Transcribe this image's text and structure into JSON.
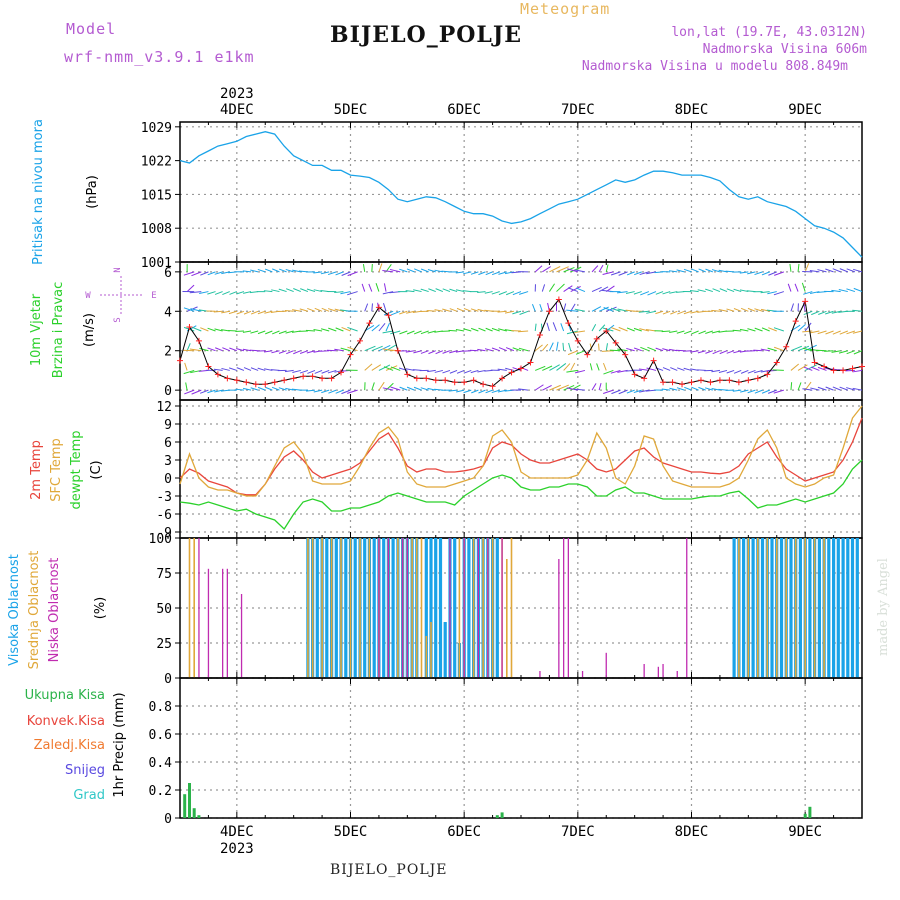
{
  "header": {
    "model_label": "Model",
    "model_name": "wrf-nmm_v3.9.1 e1km",
    "station": "BIJELO_POLJE",
    "meteogram": "Meteogram",
    "lonlat": "lon,lat (19.7E, 43.0312N)",
    "altitude": "Nadmorska Visina 606m",
    "model_altitude": "Nadmorska Visina u modelu 808.849m"
  },
  "footer": {
    "station": "BIJELO_POLJE"
  },
  "watermark": "made by Angel",
  "time_axis": {
    "year": "2023",
    "days": [
      "4DEC",
      "5DEC",
      "6DEC",
      "7DEC",
      "8DEC",
      "9DEC"
    ],
    "range_hours": [
      -12,
      132
    ]
  },
  "colors": {
    "pressure": "#1aa3e8",
    "wind_label": "#2bd12b",
    "temp2m": "#e8453c",
    "sfc_temp": "#e0a83a",
    "dewpt": "#2bd12b",
    "high_cloud": "#1aa3e8",
    "mid_cloud": "#e0a83a",
    "low_cloud": "#c02cb0",
    "total_precip": "#2bb34a",
    "conv_precip": "#e8453c",
    "frozen_precip": "#f07a30",
    "snow": "#5a4ae0",
    "hail": "#30c8c8"
  },
  "chart_data": [
    {
      "type": "line",
      "panel": "pressure",
      "ylabel": "Pritisak na nivou mora",
      "unit": "(hPa)",
      "ylim": [
        1001,
        1030
      ],
      "yticks": [
        1001,
        1008,
        1015,
        1022,
        1029
      ],
      "series": [
        {
          "x": [
            -12,
            -10,
            -8,
            -6,
            -4,
            -2,
            0,
            2,
            4,
            6,
            8,
            10,
            12,
            14,
            16,
            18,
            20,
            22,
            24,
            26,
            28,
            30,
            32,
            34,
            36,
            38,
            40,
            42,
            44,
            46,
            48,
            50,
            52,
            54,
            56,
            58,
            60,
            62,
            64,
            66,
            68,
            70,
            72,
            74,
            76,
            78,
            80,
            82,
            84,
            86,
            88,
            90,
            92,
            94,
            96,
            98,
            100,
            102,
            104,
            106,
            108,
            110,
            112,
            114,
            116,
            118,
            120,
            122,
            124,
            126,
            128,
            130,
            132
          ],
          "values": [
            1022,
            1021.5,
            1023,
            1024,
            1025,
            1025.5,
            1026,
            1027,
            1027.5,
            1028,
            1027.5,
            1025,
            1023,
            1022,
            1021,
            1021,
            1020,
            1020,
            1019,
            1018.8,
            1018.5,
            1017.5,
            1016,
            1014,
            1013.5,
            1014,
            1014.5,
            1014.3,
            1013.5,
            1012.5,
            1011.5,
            1011,
            1011,
            1010.5,
            1009.5,
            1009,
            1009.3,
            1010,
            1011,
            1012,
            1013,
            1013.5,
            1014,
            1015,
            1016,
            1017,
            1018,
            1017.5,
            1018,
            1019,
            1019.8,
            1019.8,
            1019.5,
            1019,
            1019,
            1019,
            1018.5,
            1017.8,
            1016,
            1014.5,
            1014,
            1014.5,
            1013.5,
            1013,
            1012.5,
            1011.5,
            1010,
            1008.5,
            1008,
            1007.2,
            1006,
            1004,
            1002
          ]
        }
      ]
    },
    {
      "type": "line",
      "panel": "wind",
      "ylabel": [
        "10m Vjetar",
        "Brzina i Pravac"
      ],
      "unit": "(m/s)",
      "compass": {
        "n": "N",
        "s": "S",
        "w": "W",
        "e": "E"
      },
      "ylim": [
        -0.5,
        6.5
      ],
      "yticks": [
        0,
        2,
        4,
        6
      ],
      "series": [
        {
          "name": "speed",
          "x": [
            -12,
            -10,
            -8,
            -6,
            -4,
            -2,
            0,
            2,
            4,
            6,
            8,
            10,
            12,
            14,
            16,
            18,
            20,
            22,
            24,
            26,
            28,
            30,
            32,
            34,
            36,
            38,
            40,
            42,
            44,
            46,
            48,
            50,
            52,
            54,
            56,
            58,
            60,
            62,
            64,
            66,
            68,
            70,
            72,
            74,
            76,
            78,
            80,
            82,
            84,
            86,
            88,
            90,
            92,
            94,
            96,
            98,
            100,
            102,
            104,
            106,
            108,
            110,
            112,
            114,
            116,
            118,
            120,
            122,
            124,
            126,
            128,
            130,
            132
          ],
          "values": [
            1.5,
            3.2,
            2.5,
            1.2,
            0.8,
            0.6,
            0.5,
            0.4,
            0.3,
            0.3,
            0.4,
            0.5,
            0.6,
            0.7,
            0.7,
            0.6,
            0.6,
            0.9,
            1.8,
            2.5,
            3.4,
            4.2,
            3.8,
            2.0,
            0.8,
            0.6,
            0.6,
            0.5,
            0.5,
            0.4,
            0.4,
            0.5,
            0.3,
            0.2,
            0.6,
            0.9,
            1.1,
            1.4,
            2.8,
            4.0,
            4.6,
            3.4,
            2.5,
            1.8,
            2.6,
            3.0,
            2.4,
            1.8,
            0.8,
            0.6,
            1.5,
            0.4,
            0.4,
            0.3,
            0.4,
            0.5,
            0.4,
            0.5,
            0.5,
            0.4,
            0.5,
            0.6,
            0.8,
            1.4,
            2.2,
            3.5,
            4.5,
            1.4,
            1.2,
            1.0,
            1.0,
            1.1,
            1.2
          ]
        }
      ]
    },
    {
      "type": "line",
      "panel": "temperature",
      "ylabels": [
        "2m Temp",
        "SFC Temp",
        "dewpt Temp"
      ],
      "unit": "(C)",
      "ylim": [
        -10,
        13
      ],
      "yticks": [
        -9,
        -6,
        -3,
        0,
        3,
        6,
        9,
        12
      ],
      "x": [
        -12,
        -10,
        -8,
        -6,
        -4,
        -2,
        0,
        2,
        4,
        6,
        8,
        10,
        12,
        14,
        16,
        18,
        20,
        22,
        24,
        26,
        28,
        30,
        32,
        34,
        36,
        38,
        40,
        42,
        44,
        46,
        48,
        50,
        52,
        54,
        56,
        58,
        60,
        62,
        64,
        66,
        68,
        70,
        72,
        74,
        76,
        78,
        80,
        82,
        84,
        86,
        88,
        90,
        92,
        94,
        96,
        98,
        100,
        102,
        104,
        106,
        108,
        110,
        112,
        114,
        116,
        118,
        120,
        122,
        124,
        126,
        128,
        130,
        132
      ],
      "series": [
        {
          "name": "2m Temp",
          "values": [
            0,
            1.5,
            0.8,
            -0.5,
            -1.0,
            -1.5,
            -2.5,
            -2.8,
            -2.8,
            -1,
            1.5,
            3.5,
            4.5,
            3,
            1,
            0,
            0.5,
            1,
            1.5,
            2.5,
            4.5,
            6.5,
            7.5,
            5,
            2,
            1,
            1.5,
            1.5,
            1,
            1,
            1.2,
            1.5,
            2,
            5,
            6,
            5.5,
            4,
            3,
            2.5,
            2.5,
            3,
            3.5,
            4,
            3,
            1.5,
            1,
            1.5,
            3,
            4.5,
            5,
            3.5,
            2.5,
            2,
            1.5,
            1,
            1,
            0.8,
            0.7,
            1,
            2,
            4,
            5,
            6,
            3.5,
            1.5,
            0.5,
            -0.5,
            0,
            0.5,
            1,
            3,
            6,
            10
          ]
        },
        {
          "name": "SFC Temp",
          "values": [
            -1,
            4,
            0,
            -1.5,
            -2,
            -2,
            -2.5,
            -3,
            -3,
            -1,
            2,
            5,
            6,
            4,
            -0.5,
            -1,
            -1,
            -1,
            -0.5,
            2,
            5,
            7.5,
            8.5,
            6.5,
            1,
            -1,
            -1.5,
            -1.5,
            -1.5,
            -1,
            -0.5,
            0,
            2,
            7,
            8,
            6,
            1,
            0,
            0,
            0,
            0,
            0,
            0.5,
            3,
            7.5,
            5,
            0,
            -1,
            2,
            7,
            6.5,
            2,
            -0.5,
            -1,
            -1.5,
            -1.5,
            -1.5,
            -1.5,
            -1,
            0,
            3,
            6.5,
            8,
            5,
            0,
            -1,
            -1.5,
            -1,
            0,
            0.5,
            5,
            10,
            12
          ]
        },
        {
          "name": "dewpt Temp",
          "values": [
            -4,
            -4.2,
            -4.5,
            -4,
            -4.5,
            -5,
            -5.5,
            -5.2,
            -6,
            -6.5,
            -7,
            -8.5,
            -6,
            -4,
            -3.5,
            -4,
            -5.5,
            -5.5,
            -5,
            -5,
            -4.5,
            -4,
            -3,
            -2.5,
            -3,
            -3.5,
            -4,
            -4,
            -4,
            -4.5,
            -3,
            -2,
            -1,
            0,
            0.5,
            0,
            -1.5,
            -2,
            -2,
            -1.5,
            -1.5,
            -1,
            -1,
            -1.5,
            -3,
            -3,
            -2,
            -1.5,
            -2.5,
            -2.5,
            -3,
            -3.5,
            -3.5,
            -3.5,
            -3.5,
            -3.2,
            -3,
            -3,
            -2.5,
            -2.2,
            -3.5,
            -5,
            -4.5,
            -4.5,
            -4,
            -3.5,
            -4,
            -3.5,
            -3,
            -2.5,
            -1,
            1.5,
            3
          ]
        }
      ]
    },
    {
      "type": "bar",
      "panel": "cloud",
      "ylabels": [
        "Visoka Oblacnost",
        "Srednja Oblacnost",
        "Niska Oblacnost"
      ],
      "unit": "(%)",
      "ylim": [
        0,
        100
      ],
      "yticks": [
        0,
        25,
        50,
        75,
        100
      ],
      "series": [
        {
          "name": "Visoka Oblacnost",
          "x": [
            15,
            16,
            17,
            18,
            19,
            20,
            21,
            22,
            23,
            24,
            25,
            26,
            27,
            28,
            29,
            30,
            31,
            32,
            33,
            34,
            35,
            36,
            37,
            38,
            40,
            41,
            42,
            43,
            44,
            45,
            46,
            47,
            48,
            49,
            50,
            51,
            52,
            53,
            54,
            55,
            105,
            106,
            107,
            108,
            109,
            110,
            111,
            112,
            113,
            114,
            115,
            116,
            117,
            118,
            119,
            120,
            121,
            122,
            123,
            124,
            125,
            126,
            127,
            128,
            129,
            130,
            131
          ],
          "values": [
            100,
            100,
            100,
            100,
            100,
            100,
            100,
            100,
            100,
            100,
            100,
            100,
            100,
            100,
            100,
            100,
            100,
            100,
            100,
            100,
            100,
            100,
            100,
            100,
            100,
            100,
            100,
            100,
            40,
            100,
            100,
            25,
            100,
            100,
            100,
            100,
            100,
            100,
            100,
            100,
            100,
            100,
            100,
            100,
            100,
            100,
            100,
            100,
            100,
            100,
            100,
            100,
            100,
            100,
            100,
            100,
            100,
            100,
            100,
            100,
            100,
            100,
            100,
            100,
            100,
            100,
            100
          ]
        },
        {
          "name": "Srednja Oblacnost",
          "x": [
            -10,
            -9,
            15,
            16,
            18,
            20,
            22,
            24,
            26,
            28,
            30,
            32,
            34,
            35,
            36,
            37,
            38,
            39,
            40,
            41,
            47,
            48,
            50,
            52,
            53,
            54,
            56,
            57,
            58,
            106,
            108,
            110,
            112,
            114,
            116,
            118,
            120,
            122,
            124
          ],
          "values": [
            100,
            100,
            100,
            100,
            100,
            100,
            100,
            100,
            100,
            100,
            100,
            100,
            100,
            100,
            100,
            100,
            100,
            100,
            30,
            40,
            100,
            100,
            100,
            100,
            100,
            100,
            100,
            85,
            100,
            100,
            100,
            100,
            100,
            100,
            100,
            100,
            100,
            100,
            100
          ]
        },
        {
          "name": "Niska Oblacnost",
          "x": [
            -8,
            -6,
            -3,
            -2,
            1,
            30,
            32,
            35,
            36,
            45,
            48,
            51,
            53,
            56,
            64,
            68,
            69,
            70,
            73,
            78,
            86,
            89,
            90,
            93,
            95
          ],
          "values": [
            100,
            78,
            78,
            78,
            60,
            100,
            100,
            100,
            100,
            100,
            100,
            100,
            100,
            100,
            5,
            85,
            100,
            100,
            5,
            18,
            10,
            8,
            10,
            5,
            100
          ]
        }
      ]
    },
    {
      "type": "bar",
      "panel": "precipitation",
      "ylabels": [
        "Ukupna Kisa",
        "Konvek.Kisa",
        "Zaledj.Kisa",
        "Snijeg",
        "Grad"
      ],
      "unit": "1hr Precip (mm)",
      "ylim": [
        0,
        1.0
      ],
      "yticks": [
        0,
        0.2,
        0.4,
        0.6,
        0.8
      ],
      "series": [
        {
          "name": "Ukupna Kisa",
          "x": [
            -11,
            -10,
            -9,
            -8,
            55,
            56,
            120,
            121
          ],
          "values": [
            0.17,
            0.25,
            0.07,
            0.02,
            0.02,
            0.04,
            0.03,
            0.08
          ]
        }
      ]
    }
  ]
}
